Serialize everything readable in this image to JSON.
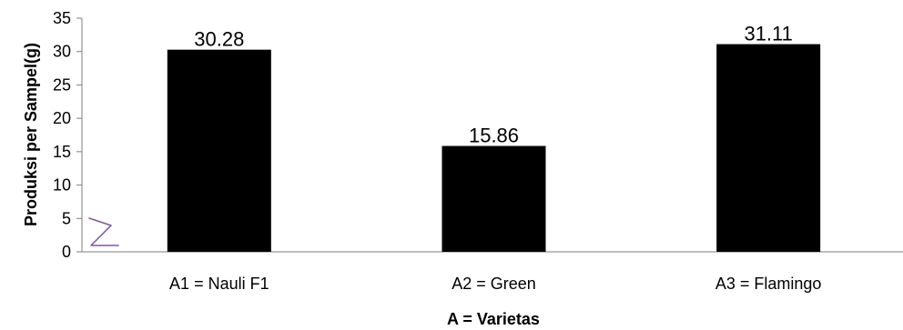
{
  "chart_data": {
    "type": "bar",
    "categories": [
      "A1 = Nauli F1",
      "A2 = Green",
      "A3 = Flamingo"
    ],
    "values": [
      30.28,
      15.86,
      31.11
    ],
    "value_labels": [
      "30.28",
      "15.86",
      "31.11"
    ],
    "xlabel": "A = Varietas",
    "ylabel": "Produksi per  Sampel(g)",
    "ylim": [
      0,
      35
    ],
    "yticks": [
      "0",
      "5",
      "10",
      "15",
      "20",
      "25",
      "30",
      "35"
    ],
    "bar_color": "#000000",
    "grid": false,
    "legend": "none"
  }
}
